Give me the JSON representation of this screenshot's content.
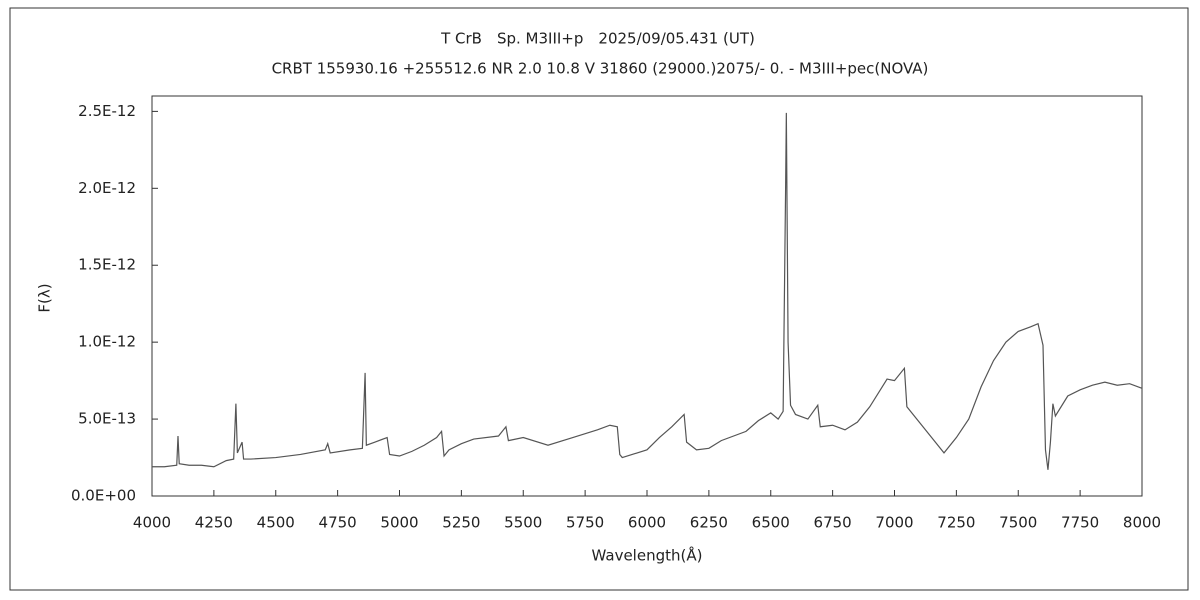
{
  "chart_data": {
    "type": "line",
    "title": "T CrB　Sp. M3III+p　2025/09/05.431 (UT)",
    "subtitle": "CRBT 155930.16 +255512.6 NR 2.0 10.8 V 31860 (29000.)2075/-  0. - M3III+pec(NOVA)",
    "xlabel": "Wavelength(Å)",
    "ylabel": "F(λ)",
    "color": "#555555",
    "grid": false,
    "xlim": [
      4000,
      8000
    ],
    "xticks": [
      4000,
      4250,
      4500,
      4750,
      5000,
      5250,
      5500,
      5750,
      6000,
      6250,
      6500,
      6750,
      7000,
      7250,
      7500,
      7750,
      8000
    ],
    "ylim": [
      0,
      2.6e-12
    ],
    "yticks": [
      {
        "value": 0,
        "label": "0.0E+00"
      },
      {
        "value": 5e-13,
        "label": "5.0E-13"
      },
      {
        "value": 1e-12,
        "label": "1.0E-12"
      },
      {
        "value": 1.5e-12,
        "label": "1.5E-12"
      },
      {
        "value": 2e-12,
        "label": "2.0E-12"
      },
      {
        "value": 2.5e-12,
        "label": "2.5E-12"
      }
    ],
    "x": [
      4000,
      4050,
      4100,
      4105,
      4110,
      4150,
      4200,
      4250,
      4300,
      4330,
      4339,
      4345,
      4364,
      4370,
      4400,
      4500,
      4600,
      4700,
      4710,
      4720,
      4800,
      4850,
      4861,
      4866,
      4900,
      4950,
      4960,
      5000,
      5050,
      5100,
      5150,
      5170,
      5180,
      5200,
      5250,
      5300,
      5400,
      5430,
      5440,
      5500,
      5600,
      5700,
      5800,
      5850,
      5880,
      5890,
      5900,
      6000,
      6050,
      6100,
      6150,
      6160,
      6200,
      6250,
      6300,
      6400,
      6450,
      6500,
      6530,
      6550,
      6560,
      6563,
      6570,
      6580,
      6600,
      6650,
      6690,
      6700,
      6750,
      6800,
      6850,
      6900,
      6970,
      7000,
      7040,
      7050,
      7100,
      7150,
      7200,
      7250,
      7300,
      7350,
      7400,
      7450,
      7500,
      7550,
      7580,
      7600,
      7610,
      7620,
      7630,
      7640,
      7650,
      7700,
      7750,
      7800,
      7850,
      7900,
      7950,
      8000
    ],
    "values": [
      1.9e-13,
      1.9e-13,
      2e-13,
      3.9e-13,
      2.1e-13,
      2e-13,
      2e-13,
      1.9e-13,
      2.3e-13,
      2.4e-13,
      6e-13,
      2.8e-13,
      3.5e-13,
      2.4e-13,
      2.4e-13,
      2.5e-13,
      2.7e-13,
      3e-13,
      3.4e-13,
      2.8e-13,
      3e-13,
      3.1e-13,
      8e-13,
      3.3e-13,
      3.5e-13,
      3.8e-13,
      2.7e-13,
      2.6e-13,
      2.9e-13,
      3.3e-13,
      3.8e-13,
      4.2e-13,
      2.6e-13,
      3e-13,
      3.4e-13,
      3.7e-13,
      3.9e-13,
      4.5e-13,
      3.6e-13,
      3.8e-13,
      3.3e-13,
      3.8e-13,
      4.3e-13,
      4.6e-13,
      4.5e-13,
      2.7e-13,
      2.5e-13,
      3e-13,
      3.8e-13,
      4.5e-13,
      5.3e-13,
      3.5e-13,
      3e-13,
      3.1e-13,
      3.6e-13,
      4.2e-13,
      4.9e-13,
      5.4e-13,
      5e-13,
      5.5e-13,
      2e-12,
      2.49e-12,
      1e-12,
      5.9e-13,
      5.3e-13,
      5e-13,
      5.9e-13,
      4.5e-13,
      4.6e-13,
      4.3e-13,
      4.8e-13,
      5.8e-13,
      7.6e-13,
      7.5e-13,
      8.3e-13,
      5.8e-13,
      4.8e-13,
      3.8e-13,
      2.8e-13,
      3.8e-13,
      5e-13,
      7.1e-13,
      8.8e-13,
      1e-12,
      1.07e-12,
      1.1e-12,
      1.12e-12,
      9.8e-13,
      3e-13,
      1.7e-13,
      3.5e-13,
      6e-13,
      5.2e-13,
      6.5e-13,
      6.9e-13,
      7.2e-13,
      7.4e-13,
      7.2e-13,
      7.3e-13,
      7e-13
    ]
  }
}
